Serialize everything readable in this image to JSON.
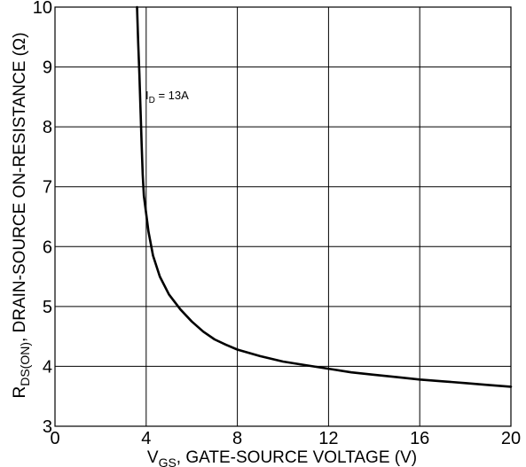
{
  "chart_data": {
    "type": "line",
    "title": "",
    "xlabel": {
      "main": "V",
      "sub": "GS",
      "rest": ", GATE-SOURCE VOLTAGE (V)"
    },
    "ylabel": {
      "main": "R",
      "sub": "DS(ON)",
      "rest": ", DRAIN-SOURCE ON-RESISTANCE (Ω)"
    },
    "xlim": [
      0,
      20
    ],
    "ylim": [
      3,
      10
    ],
    "x_ticks": [
      0,
      4,
      8,
      12,
      16,
      20
    ],
    "y_ticks": [
      3,
      4,
      5,
      6,
      7,
      8,
      9,
      10
    ],
    "x_grid": [
      0,
      4,
      8,
      12,
      16,
      20
    ],
    "y_grid": [
      3,
      4,
      5,
      6,
      7,
      8,
      9,
      10
    ],
    "grid": true,
    "series": [
      {
        "label_main": "I",
        "label_sub": "D",
        "label_rest": " = 13A",
        "x": [
          3.6,
          3.65,
          3.7,
          3.75,
          3.8,
          3.85,
          3.9,
          4.0,
          4.1,
          4.3,
          4.6,
          5.0,
          5.5,
          6.0,
          6.5,
          7.0,
          7.5,
          8.0,
          9.0,
          10.0,
          11.0,
          12.0,
          13.0,
          14.0,
          15.0,
          16.0,
          17.0,
          18.0,
          19.0,
          20.0
        ],
        "y": [
          10.0,
          9.4,
          8.9,
          8.3,
          7.7,
          7.2,
          6.85,
          6.55,
          6.25,
          5.85,
          5.5,
          5.2,
          4.95,
          4.75,
          4.58,
          4.45,
          4.36,
          4.28,
          4.17,
          4.08,
          4.02,
          3.96,
          3.9,
          3.86,
          3.82,
          3.78,
          3.75,
          3.72,
          3.69,
          3.66
        ]
      }
    ]
  }
}
